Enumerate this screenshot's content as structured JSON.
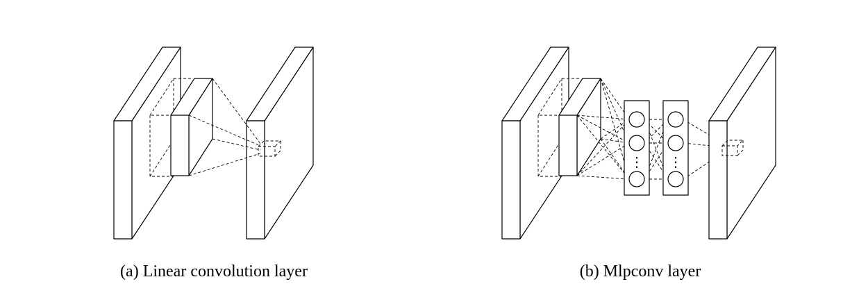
{
  "captions": {
    "linear": "(a) Linear convolution layer",
    "mlpconv": "(b) Mlpconv layer"
  },
  "mlp": {
    "ellipsis": "⋮"
  }
}
